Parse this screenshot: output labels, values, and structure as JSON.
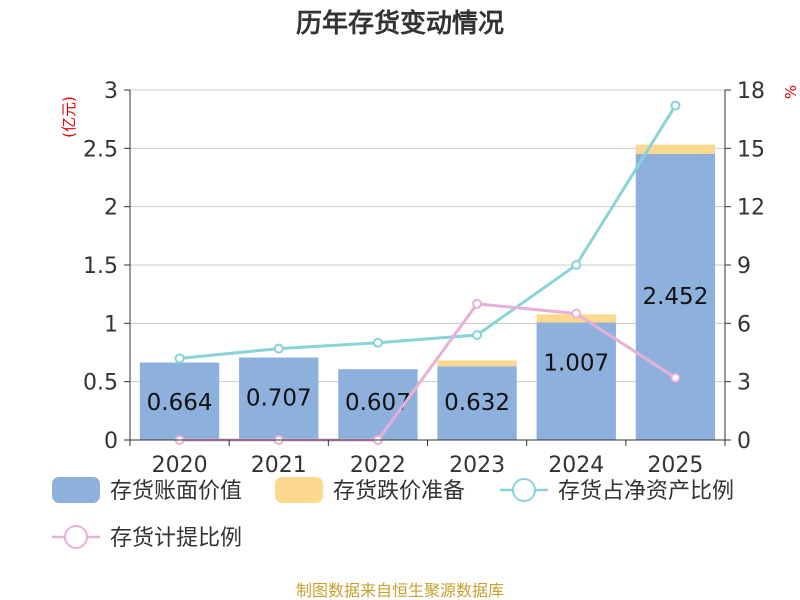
{
  "title": "历年存货变动情况",
  "source": "制图数据来自恒生聚源数据库",
  "chart_data": {
    "type": "bar",
    "categories": [
      "2020",
      "2021",
      "2022",
      "2023",
      "2024",
      "2025"
    ],
    "left_axis": {
      "unit": "(亿元)",
      "ylim": [
        0,
        3
      ],
      "ticks": [
        "0",
        "0.5",
        "1",
        "1.5",
        "2",
        "2.5",
        "3"
      ]
    },
    "right_axis": {
      "unit": "%",
      "ylim": [
        0,
        18
      ],
      "ticks": [
        "0",
        "3",
        "6",
        "9",
        "12",
        "15",
        "18"
      ]
    },
    "series": [
      {
        "name": "存货账面价值",
        "kind": "bar",
        "axis": "left",
        "color": "#8eb0dc",
        "values": [
          0.664,
          0.707,
          0.607,
          0.632,
          1.007,
          2.452
        ],
        "labels": [
          "0.664",
          "0.707",
          "0.607",
          "0.632",
          "1.007",
          "2.452"
        ]
      },
      {
        "name": "存货跌价准备",
        "kind": "bar-stack",
        "axis": "left",
        "color": "#fdd98f",
        "values": [
          0,
          0,
          0,
          0.05,
          0.07,
          0.08
        ]
      },
      {
        "name": "存货占净资产比例",
        "kind": "line",
        "axis": "right",
        "color": "#88d4d8",
        "values": [
          4.2,
          4.7,
          5.0,
          5.4,
          9.0,
          17.2
        ]
      },
      {
        "name": "存货计提比例",
        "kind": "line",
        "axis": "right",
        "color": "#e6b0d8",
        "values": [
          0,
          0,
          0,
          7.0,
          6.5,
          3.2
        ]
      }
    ],
    "grid": true,
    "legend": "bottom"
  }
}
